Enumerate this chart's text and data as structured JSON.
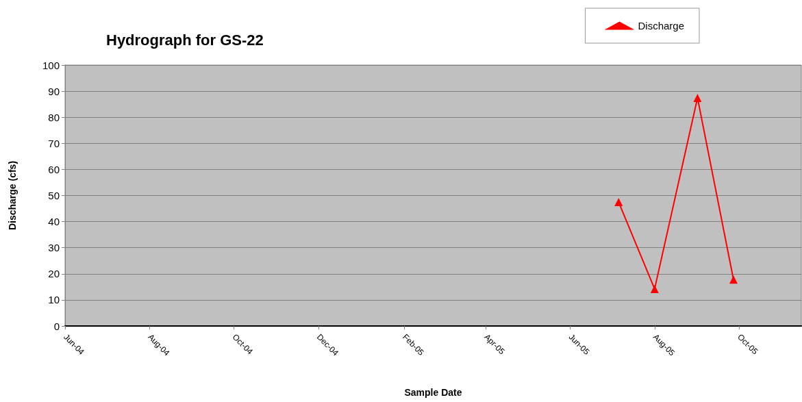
{
  "chart_data": {
    "type": "line",
    "title": "Hydrograph for GS-22",
    "xlabel": "Sample Date",
    "ylabel": "Discharge (cfs)",
    "x": [
      "2005-07-06",
      "2005-08-01",
      "2005-09-01",
      "2005-09-27"
    ],
    "series": [
      {
        "name": "Discharge",
        "color": "#ff0000",
        "values": [
          47.5,
          14.2,
          87.4,
          17.8
        ]
      }
    ],
    "xlim": [
      "2004-06-01",
      "2005-11-15"
    ],
    "xticks": [
      {
        "value": "2004-06-01",
        "label": "Jun-04"
      },
      {
        "value": "2004-08-01",
        "label": "Aug-04"
      },
      {
        "value": "2004-10-01",
        "label": "Oct-04"
      },
      {
        "value": "2004-12-01",
        "label": "Dec-04"
      },
      {
        "value": "2005-02-01",
        "label": "Feb-05"
      },
      {
        "value": "2005-04-01",
        "label": "Apr-05"
      },
      {
        "value": "2005-06-01",
        "label": "Jun-05"
      },
      {
        "value": "2005-08-01",
        "label": "Aug-05"
      },
      {
        "value": "2005-10-01",
        "label": "Oct-05"
      }
    ],
    "ylim": [
      0,
      100
    ],
    "yticks": [
      0,
      10,
      20,
      30,
      40,
      50,
      60,
      70,
      80,
      90,
      100
    ],
    "grid": "y",
    "legend": "top right",
    "marker": "triangle",
    "line_style": "solid"
  }
}
